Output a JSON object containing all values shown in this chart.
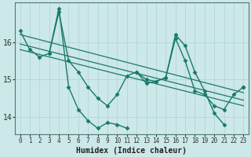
{
  "xlabel": "Humidex (Indice chaleur)",
  "bg_color": "#cce8e8",
  "grid_color": "#b8d8d8",
  "line_color": "#1a7a6a",
  "x_values": [
    0,
    1,
    2,
    3,
    4,
    5,
    6,
    7,
    8,
    9,
    10,
    11,
    12,
    13,
    14,
    15,
    16,
    17,
    18,
    19,
    20,
    21,
    22,
    23
  ],
  "series1": [
    16.3,
    15.8,
    15.6,
    15.7,
    16.8,
    15.5,
    15.2,
    14.8,
    14.5,
    14.3,
    14.6,
    15.1,
    15.2,
    15.0,
    14.95,
    15.05,
    16.2,
    15.9,
    15.2,
    14.7,
    14.1,
    13.8,
    null,
    14.8
  ],
  "series2": [
    null,
    null,
    null,
    15.7,
    16.9,
    14.8,
    14.2,
    13.9,
    13.7,
    13.85,
    13.8,
    13.7,
    null,
    null,
    null,
    null,
    null,
    null,
    null,
    null,
    null,
    null,
    null,
    null
  ],
  "series3": [
    null,
    null,
    null,
    null,
    null,
    null,
    null,
    null,
    null,
    null,
    null,
    null,
    15.2,
    14.9,
    14.95,
    15.05,
    16.1,
    15.5,
    14.7,
    14.6,
    14.3,
    14.2,
    14.6,
    14.8
  ],
  "trend1_x": [
    0,
    23
  ],
  "trend1_y": [
    16.2,
    14.65
  ],
  "trend2_x": [
    0,
    23
  ],
  "trend2_y": [
    15.95,
    14.45
  ],
  "trend3_x": [
    0,
    23
  ],
  "trend3_y": [
    15.8,
    14.3
  ],
  "ylim": [
    13.55,
    17.05
  ],
  "yticks": [
    14,
    15,
    16
  ],
  "xlim": [
    -0.5,
    23.5
  ]
}
